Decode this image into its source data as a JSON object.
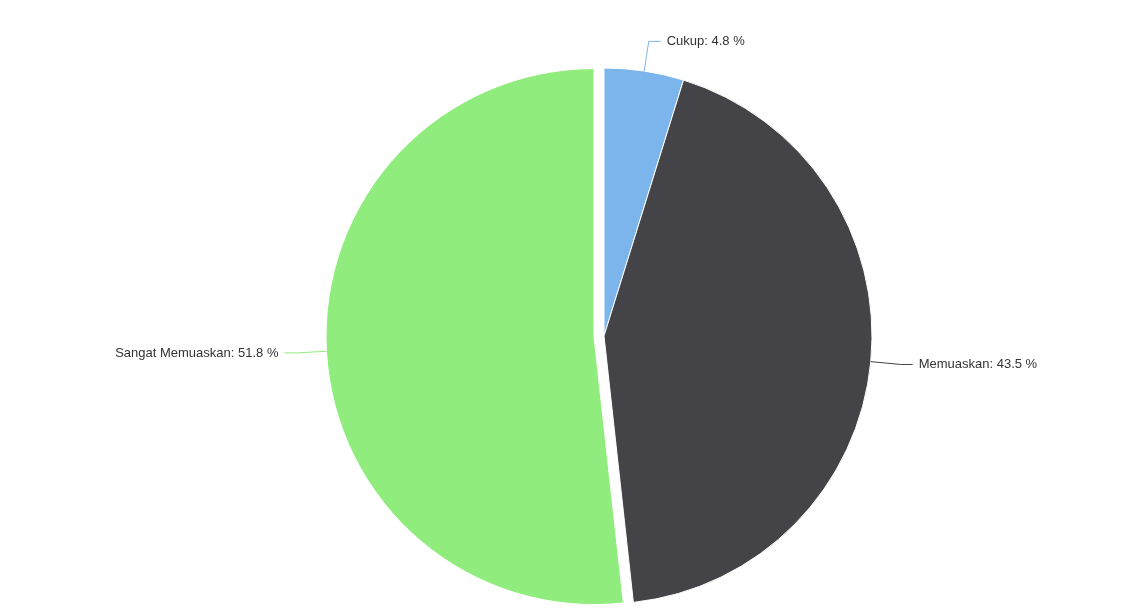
{
  "chart_data": {
    "type": "pie",
    "categories": [
      "Cukup",
      "Memuaskan",
      "Sangat Memuaskan"
    ],
    "values": [
      4.8,
      43.5,
      51.8
    ],
    "value_labels": [
      "4.8 %",
      "43.5 %",
      "51.8 %"
    ],
    "colors": [
      "#7cb5ec",
      "#434348",
      "#90ed7d"
    ]
  }
}
